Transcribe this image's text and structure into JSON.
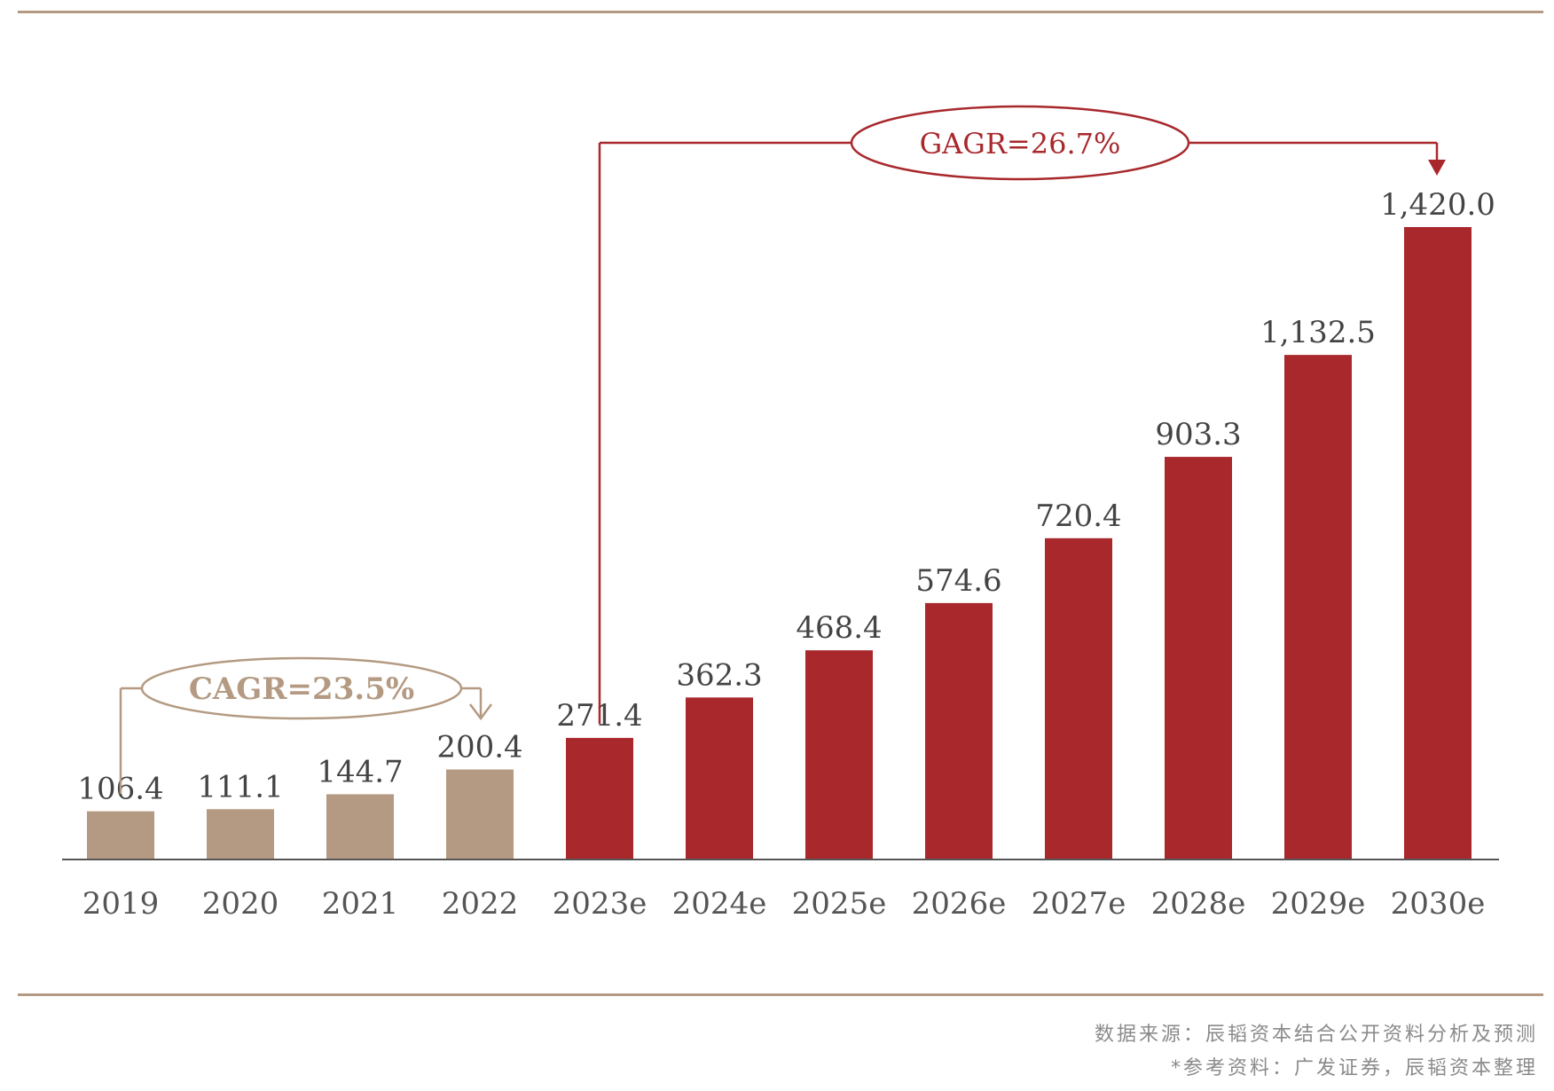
{
  "chart_data": {
    "type": "bar",
    "title": "",
    "xlabel": "",
    "ylabel": "",
    "ylim": [
      0,
      1500
    ],
    "grid": false,
    "categories": [
      "2019",
      "2020",
      "2021",
      "2022",
      "2023e",
      "2024e",
      "2025e",
      "2026e",
      "2027e",
      "2028e",
      "2029e",
      "2030e"
    ],
    "values": [
      106.4,
      111.1,
      144.7,
      200.4,
      271.4,
      362.3,
      468.4,
      574.6,
      720.4,
      903.3,
      1132.5,
      1420.0
    ],
    "value_labels": [
      "106.4",
      "111.1",
      "144.7",
      "200.4",
      "271.4",
      "362.3",
      "468.4",
      "574.6",
      "720.4",
      "903.3",
      "1,132.5",
      "1,420.0"
    ],
    "groups": [
      {
        "name": "historical",
        "indices": [
          0,
          1,
          2,
          3
        ],
        "color": "#b49a82"
      },
      {
        "name": "forecast",
        "indices": [
          4,
          5,
          6,
          7,
          8,
          9,
          10,
          11
        ],
        "color": "#a8282c"
      }
    ],
    "annotations": [
      {
        "text": "CAGR=23.5%",
        "from_index": 0,
        "to_index": 3,
        "color": "#b49a82"
      },
      {
        "text": "GAGR=26.7%",
        "from_index": 4,
        "to_index": 11,
        "color": "#a8282c"
      }
    ]
  },
  "source": {
    "line1": "数据来源：辰韬资本结合公开资料分析及预测",
    "line2": "*参考资料：广发证券，辰韬资本整理"
  }
}
